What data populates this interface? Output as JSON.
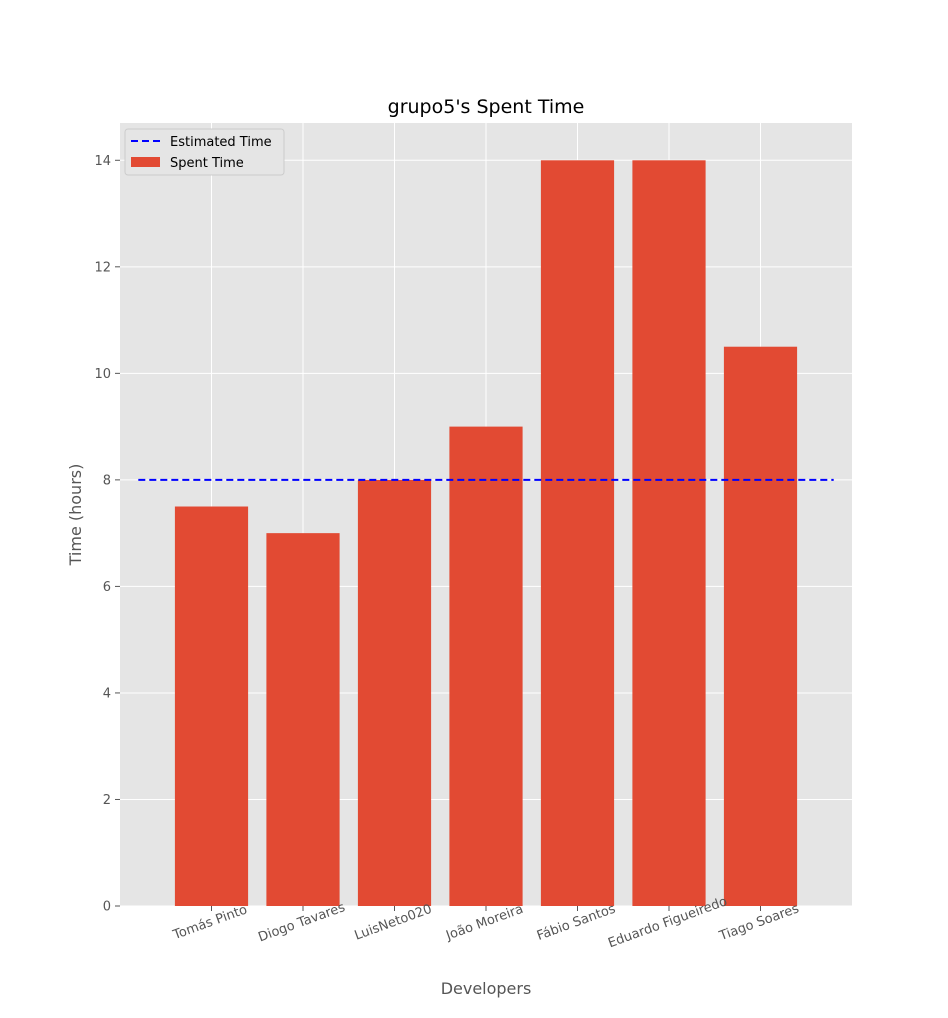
{
  "chart_data": {
    "type": "bar",
    "title": "grupo5's Spent Time",
    "xlabel": "Developers",
    "ylabel": "Time (hours)",
    "categories": [
      "Tomás Pinto",
      "Diogo Tavares",
      "LuisNeto020",
      "João Moreira",
      "Fábio Santos",
      "Eduardo Figueiredo",
      "Tiago  Soares"
    ],
    "series": [
      {
        "name": "Spent Time",
        "values": [
          7.5,
          7.0,
          8.0,
          9.0,
          14.0,
          14.0,
          10.5
        ],
        "color": "#E24A33"
      }
    ],
    "reference_line": {
      "name": "Estimated Time",
      "value": 8,
      "color": "#0000FF",
      "style": "dashed"
    },
    "ylim": [
      0,
      14.7
    ],
    "yticks": [
      0,
      2,
      4,
      6,
      8,
      10,
      12,
      14
    ],
    "grid": true,
    "legend_position": "top-left",
    "background_color": "#E5E5E5",
    "grid_color": "#FFFFFF"
  }
}
